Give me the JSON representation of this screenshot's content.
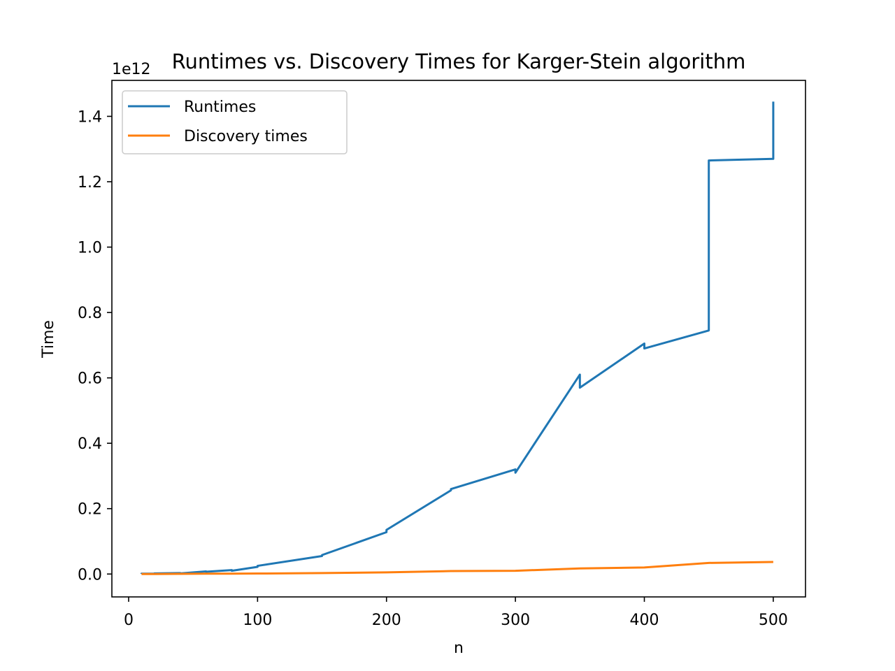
{
  "chart_data": {
    "type": "line",
    "title": "Runtimes vs. Discovery Times for Karger-Stein algorithm",
    "xlabel": "n",
    "ylabel": "Time",
    "y_offset_label": "1e12",
    "xlim": [
      -13,
      525
    ],
    "ylim": [
      -0.07,
      1.51
    ],
    "x_ticks": [
      0,
      100,
      200,
      300,
      400,
      500
    ],
    "x_tick_labels": [
      "0",
      "100",
      "200",
      "300",
      "400",
      "500"
    ],
    "y_ticks": [
      0.0,
      0.2,
      0.4,
      0.6,
      0.8,
      1.0,
      1.2,
      1.4
    ],
    "y_tick_labels": [
      "0.0",
      "0.2",
      "0.4",
      "0.6",
      "0.8",
      "1.0",
      "1.2",
      "1.4"
    ],
    "grid": false,
    "legend_position": "top-left",
    "series": [
      {
        "name": "Runtimes",
        "color": "#1f77b4",
        "x": [
          10,
          10,
          20,
          20,
          40,
          40,
          60,
          60,
          80,
          80,
          100,
          100,
          150,
          150,
          200,
          200,
          250,
          250,
          300,
          300,
          350,
          350,
          400,
          400,
          450,
          450,
          500,
          500
        ],
        "y": [
          0.0005,
          0.001,
          0.001,
          0.002,
          0.003,
          0.002,
          0.008,
          0.007,
          0.012,
          0.01,
          0.022,
          0.025,
          0.055,
          0.058,
          0.128,
          0.135,
          0.256,
          0.26,
          0.32,
          0.31,
          0.61,
          0.57,
          0.705,
          0.69,
          0.745,
          1.265,
          1.27,
          1.445
        ]
      },
      {
        "name": "Discovery times",
        "color": "#ff7f0e",
        "x": [
          10,
          20,
          40,
          60,
          80,
          100,
          150,
          200,
          250,
          300,
          350,
          400,
          450,
          500
        ],
        "y": [
          0.0,
          0.0,
          0.0005,
          0.001,
          0.001,
          0.0015,
          0.003,
          0.005,
          0.009,
          0.01,
          0.017,
          0.02,
          0.034,
          0.037
        ]
      }
    ]
  }
}
